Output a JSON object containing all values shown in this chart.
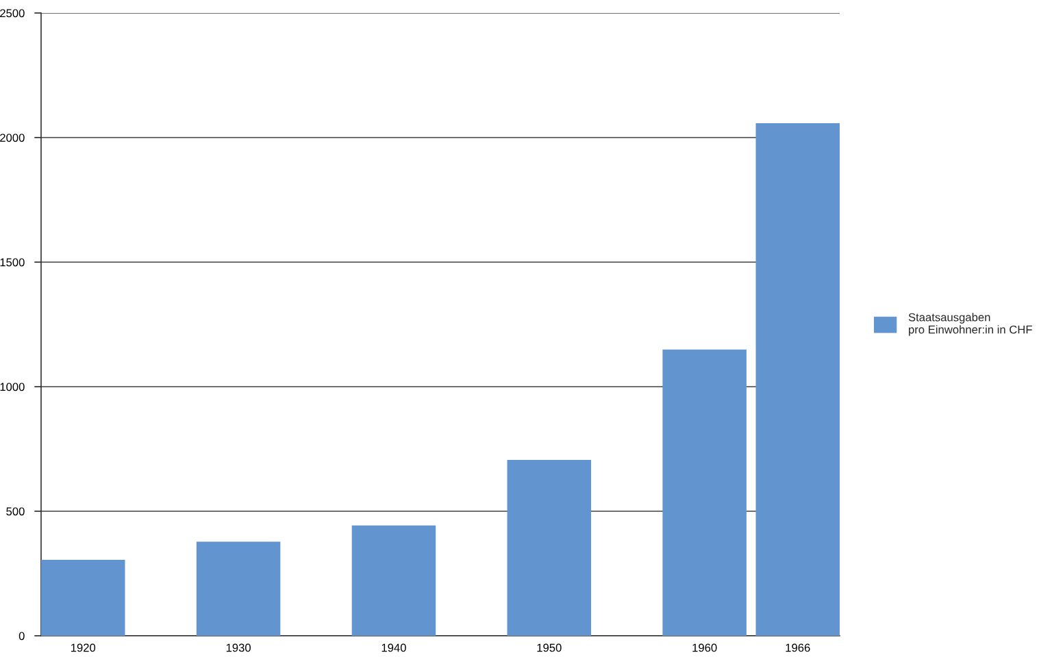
{
  "chart_data": {
    "type": "bar",
    "x": [
      1920,
      1930,
      1940,
      1950,
      1960,
      1966
    ],
    "series": [
      {
        "name": "Staatsausgaben\npro Einwohner:in in CHF",
        "color": "#6295cf",
        "values": [
          305,
          378,
          443,
          706,
          1149,
          2058
        ]
      }
    ],
    "xlim": [
      1917.3,
      1968.7
    ],
    "xticks": [
      1920,
      1930,
      1940,
      1950,
      1960,
      1966
    ],
    "ylim": [
      0,
      2500
    ],
    "yticks": [
      0,
      500,
      1000,
      1500,
      2000,
      2500
    ],
    "grid": "y",
    "legend": "right"
  }
}
